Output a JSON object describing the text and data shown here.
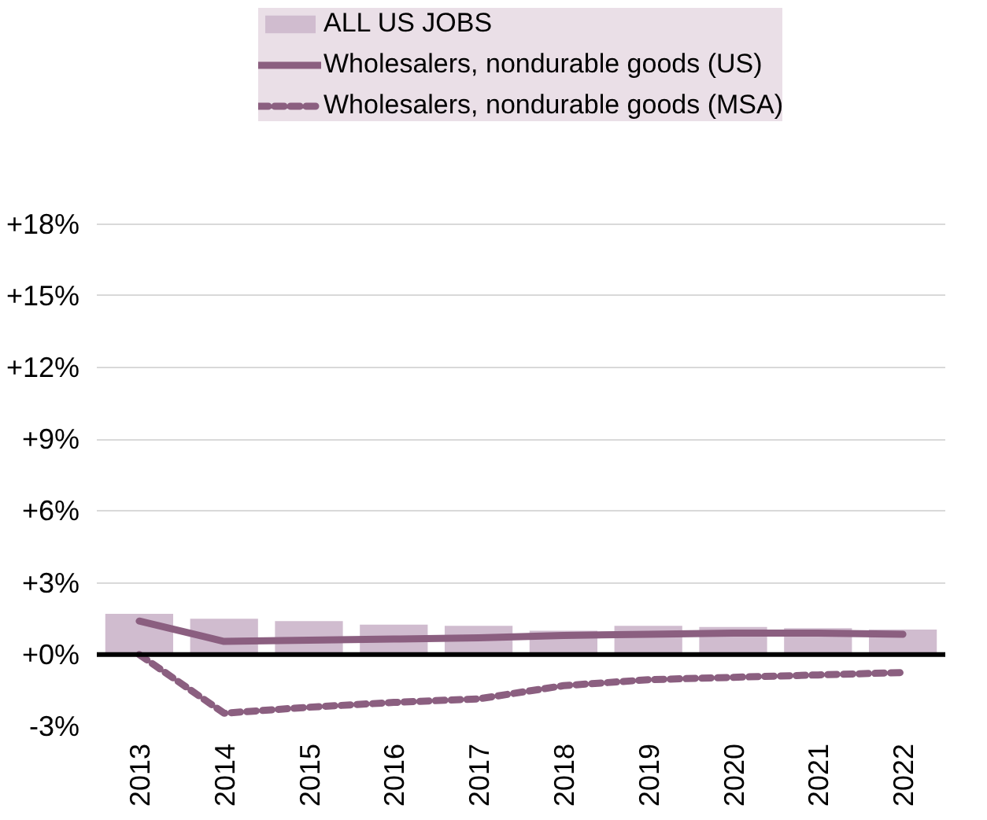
{
  "chart_data": {
    "type": "bar",
    "categories": [
      "2013",
      "2014",
      "2015",
      "2016",
      "2017",
      "2018",
      "2019",
      "2020",
      "2021",
      "2022"
    ],
    "series": [
      {
        "name": "ALL US JOBS",
        "color": "#d0bccf",
        "values": [
          1.7,
          1.5,
          1.4,
          1.25,
          1.2,
          1.0,
          1.2,
          1.15,
          1.1,
          1.05
        ]
      },
      {
        "name": "Wholesalers, nondurable goods (US)",
        "type": "line",
        "line_style": "solid",
        "color": "#8b5f80",
        "values": [
          1.4,
          0.55,
          0.6,
          0.65,
          0.7,
          0.8,
          0.85,
          0.9,
          0.9,
          0.85
        ]
      },
      {
        "name": "Wholesalers, nondurable goods (MSA)",
        "type": "line",
        "line_style": "dashed",
        "color": "#8b5f80",
        "values": [
          0,
          -2.45,
          -2.2,
          -2.0,
          -1.85,
          -1.3,
          -1.05,
          -0.95,
          -0.85,
          -0.75
        ]
      }
    ],
    "ylim": [
      -3,
      27
    ],
    "yticks": [
      {
        "value": -3,
        "label": "-3%"
      },
      {
        "value": 0,
        "label": "+0%"
      },
      {
        "value": 3,
        "label": "+3%"
      },
      {
        "value": 6,
        "label": "+6%"
      },
      {
        "value": 9,
        "label": "+9%"
      },
      {
        "value": 12,
        "label": "+12%"
      },
      {
        "value": 15,
        "label": "+15%"
      },
      {
        "value": 18,
        "label": "+18%"
      }
    ],
    "ref_lines": [
      {
        "axis": "y",
        "value": 0,
        "color": "#000000"
      }
    ],
    "grid": "y",
    "legend": "top"
  }
}
